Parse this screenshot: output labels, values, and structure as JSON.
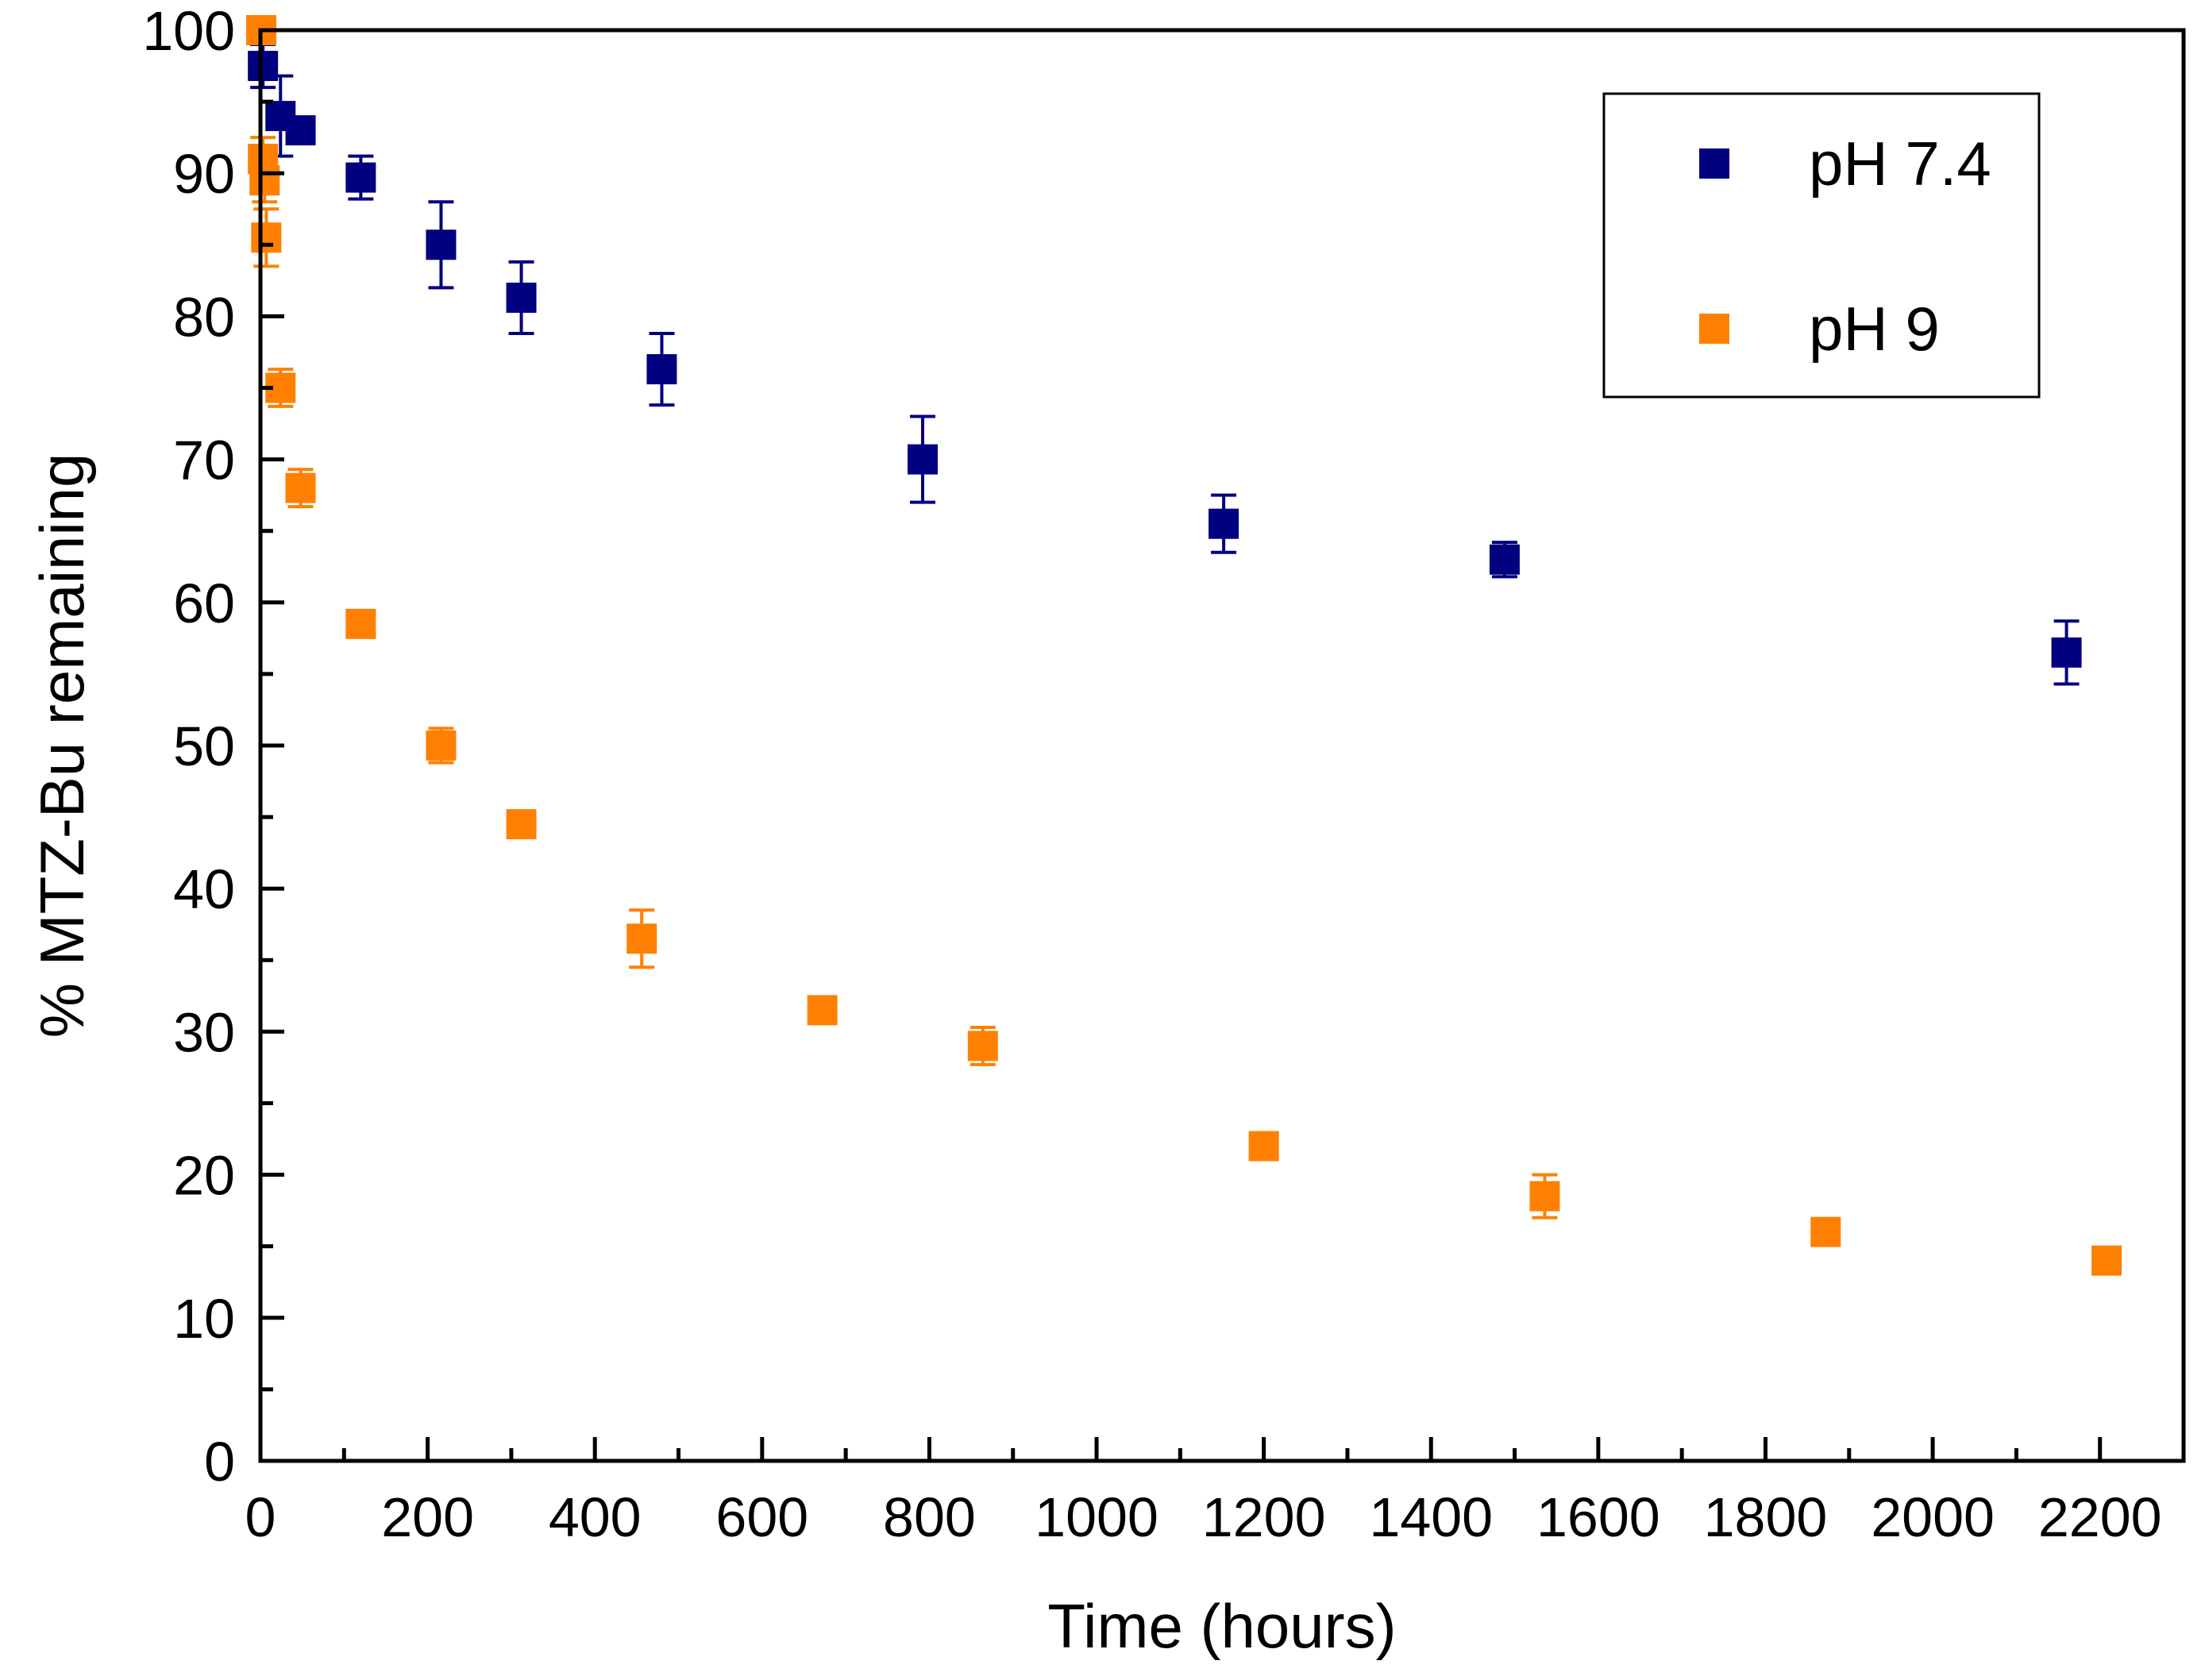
{
  "chart_data": {
    "type": "scatter",
    "title": "",
    "xlabel": "Time (hours)",
    "ylabel": "% MTZ-Bu remaining",
    "xlim": [
      0,
      2300
    ],
    "ylim": [
      0,
      100
    ],
    "xticks": [
      0,
      200,
      400,
      600,
      800,
      1000,
      1200,
      1400,
      1600,
      1800,
      2000,
      2200
    ],
    "xtick_labels": [
      "0",
      "200",
      "400",
      "600",
      "800",
      "1000",
      "1200",
      "1400",
      "1600",
      "1800",
      "2000",
      "2200"
    ],
    "yticks": [
      0,
      10,
      20,
      30,
      40,
      50,
      60,
      70,
      80,
      90,
      100
    ],
    "ytick_labels": [
      "0",
      "10",
      "20",
      "30",
      "40",
      "50",
      "60",
      "70",
      "80",
      "90",
      "100"
    ],
    "grid": false,
    "legend_position": "top-right",
    "series": [
      {
        "name": "pH 7.4",
        "color": "#000080",
        "marker": "square",
        "x": [
          3,
          24,
          48,
          120,
          216,
          312,
          480,
          792,
          1152,
          1488,
          2160
        ],
        "y": [
          97.5,
          94,
          93,
          89.7,
          85,
          81.3,
          76.3,
          70,
          65.5,
          63,
          56.5
        ],
        "error": [
          1.5,
          2.8,
          0,
          1.5,
          3,
          2.5,
          2.5,
          3,
          2,
          1.2,
          2.2
        ]
      },
      {
        "name": "pH 9",
        "color": "#FF8000",
        "marker": "square",
        "x": [
          1,
          3,
          5,
          7,
          24,
          48,
          120,
          216,
          312,
          456,
          672,
          864,
          1200,
          1536,
          1872,
          2208
        ],
        "y": [
          100,
          91,
          89.5,
          85.5,
          75,
          68,
          58.5,
          50,
          44.5,
          36.5,
          31.5,
          29,
          22,
          18.5,
          16,
          14
        ],
        "error": [
          0,
          1.5,
          1.5,
          2,
          1.3,
          1.3,
          0,
          1.2,
          0,
          2,
          0,
          1.3,
          0,
          1.5,
          0,
          0
        ]
      }
    ]
  }
}
